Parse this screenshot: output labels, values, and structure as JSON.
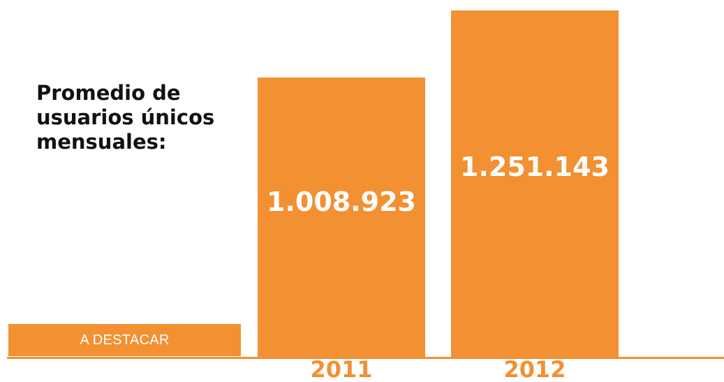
{
  "accent_color": "#f39032",
  "title": "Promedio de\nusuarios únicos\nmensuales:",
  "badge": {
    "label": "A DESTACAR"
  },
  "chart_data": {
    "type": "bar",
    "categories": [
      "2011",
      "2012"
    ],
    "values": [
      1008923,
      1251143
    ],
    "value_labels": [
      "1.008.923",
      "1.251.143"
    ],
    "title": "Promedio de\nusuarios únicos\nmensuales:",
    "xlabel": "",
    "ylabel": "",
    "grid": false,
    "ylim": [
      0,
      1251143
    ]
  }
}
